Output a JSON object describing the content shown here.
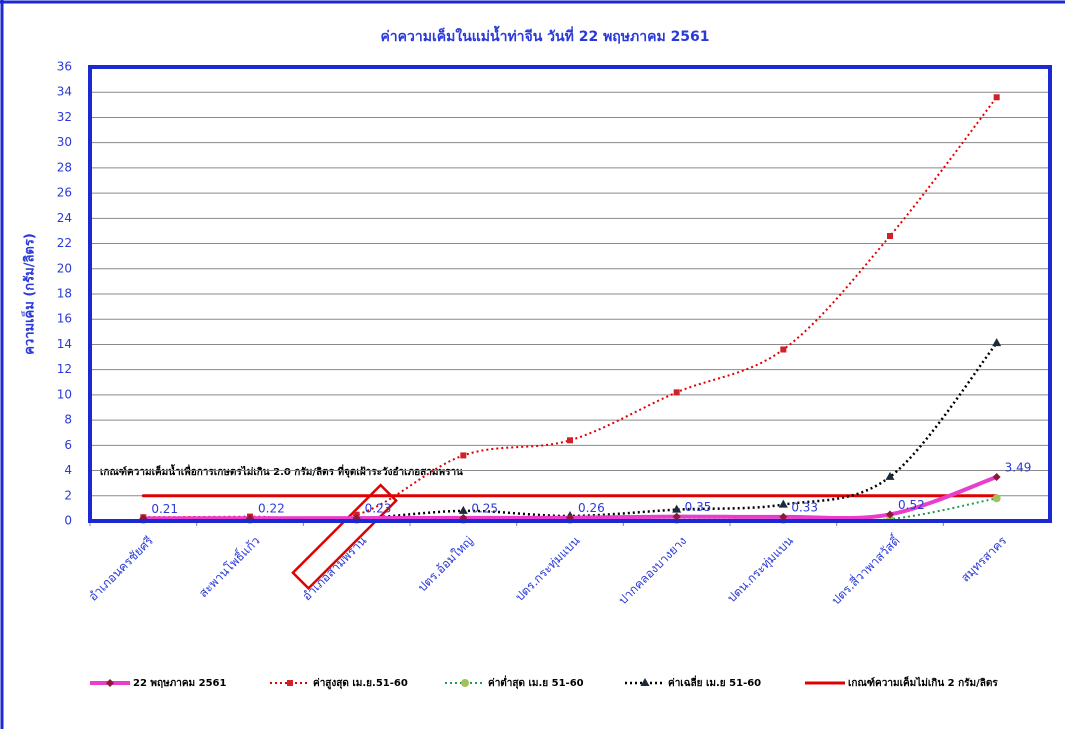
{
  "chart_data": {
    "type": "line",
    "title": "ค่าความเค็มในแม่น้ำท่าจีน วันที่  22  พฤษภาคม 2561",
    "y_label": "ความเค็ม (กรัม/ลิตร)",
    "annotation": "เกณฑ์ความเค็มน้ำเพื่อการเกษตรไม่เกิน 2.0 กรัม/ลิตร  ที่จุดเฝ้าระวังอำเภอสามพราน",
    "categories": [
      "อำเภอนครชัยศรี",
      "สะพานโพธิ์แก้ว",
      "อำเภอสามพราน",
      "ปตร.อ้อมใหญ่",
      "ปตร.กระทุ่มแบน",
      "ปากคลองบางยาง",
      "ปตน.กระทุ่มแบน",
      "ปตร.สี่วาพาสวัสดิ์",
      "สมุทรสาคร"
    ],
    "highlight_category": 2,
    "ylim": [
      0,
      36
    ],
    "yticks": [
      0,
      2,
      4,
      6,
      8,
      10,
      12,
      14,
      16,
      18,
      20,
      22,
      24,
      26,
      28,
      30,
      32,
      34,
      36
    ],
    "grid": true,
    "legend": "bottom",
    "series": [
      {
        "name": "22 พฤษภาคม 2561",
        "color": "#e83ecb",
        "style": "solid",
        "width": 4,
        "marker": "diamond",
        "marker_color": "#8b1a3a",
        "show_values": true,
        "values": [
          0.21,
          0.22,
          0.23,
          0.25,
          0.26,
          0.35,
          0.33,
          0.52,
          3.49
        ]
      },
      {
        "name": "ค่าสูงสุด เม.ย.51-60",
        "color": "#e00000",
        "style": "dotted",
        "width": 2,
        "marker": "square",
        "marker_color": "#d0202a",
        "values": [
          0.3,
          0.35,
          0.5,
          5.2,
          6.4,
          10.2,
          13.6,
          22.6,
          33.6
        ]
      },
      {
        "name": "ค่าต่ำสุด เม.ย 51-60",
        "color": "#1e9e4a",
        "style": "dotted",
        "width": 2,
        "marker": "circle",
        "marker_color": "#a3c05a",
        "values": [
          0.1,
          0.1,
          0.1,
          0.1,
          0.1,
          0.1,
          0.1,
          0.15,
          1.8
        ]
      },
      {
        "name": "ค่าเฉลี่ย เม.ย 51-60",
        "color": "#000000",
        "style": "dotted",
        "width": 2.5,
        "marker": "triangle",
        "marker_color": "#1a2a3a",
        "values": [
          0.15,
          0.15,
          0.2,
          0.8,
          0.4,
          0.9,
          1.3,
          3.5,
          14.1
        ]
      },
      {
        "name": "เกณฑ์ความเค็มไม่เกิน 2 กรัม/ลิตร",
        "color": "#e00000",
        "style": "solid",
        "width": 3,
        "marker": "none",
        "marker_color": "#e00000",
        "values": [
          2,
          2,
          2,
          2,
          2,
          2,
          2,
          2,
          2
        ]
      }
    ]
  }
}
